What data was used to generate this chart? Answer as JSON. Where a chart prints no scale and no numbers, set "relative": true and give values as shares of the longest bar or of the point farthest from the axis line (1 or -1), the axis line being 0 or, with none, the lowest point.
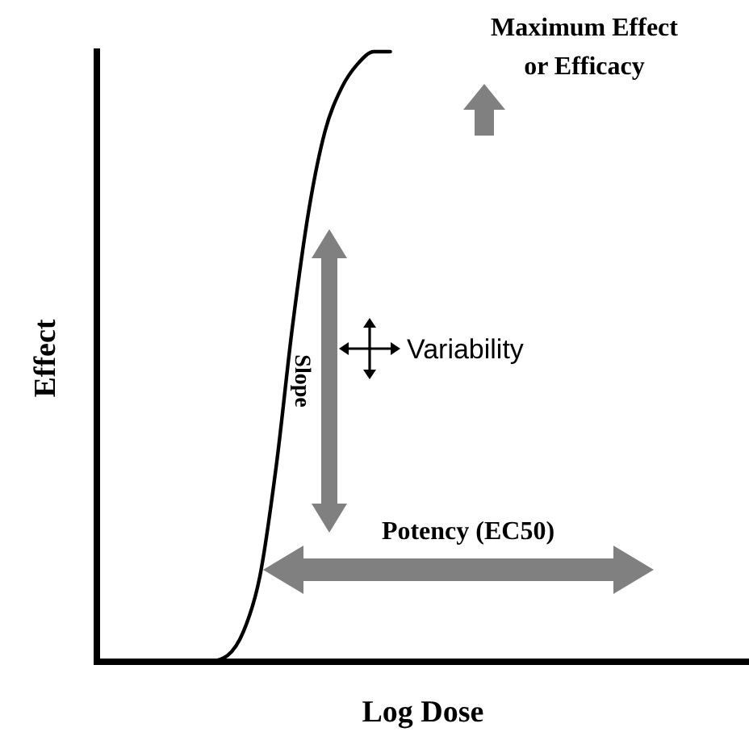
{
  "chart_data": {
    "type": "line",
    "xlabel": "Log Dose",
    "ylabel": "Effect",
    "relative": true,
    "color": "#000000",
    "categories": [
      null,
      null,
      null,
      null,
      null,
      null,
      null,
      null,
      null,
      null,
      null,
      null,
      null,
      null,
      null,
      null,
      null,
      null,
      null,
      null,
      null,
      null,
      null,
      null,
      null,
      null,
      null,
      null,
      null,
      null,
      null,
      null,
      null,
      null,
      null,
      null,
      null,
      null,
      null,
      null,
      null
    ],
    "values": [
      null,
      null,
      null,
      null,
      null,
      null,
      null,
      0,
      0.01,
      0.05,
      0.14,
      0.32,
      0.55,
      0.74,
      0.87,
      0.94,
      0.98,
      1,
      1,
      null,
      null,
      null,
      null,
      null,
      null,
      null,
      null,
      null,
      null,
      null,
      null,
      null,
      null,
      null,
      null,
      null,
      null,
      null,
      null,
      null,
      null
    ],
    "annotations": [
      "Maximum Effect or Efficacy",
      "Slope",
      "Variability",
      "Potency (EC50)"
    ]
  }
}
